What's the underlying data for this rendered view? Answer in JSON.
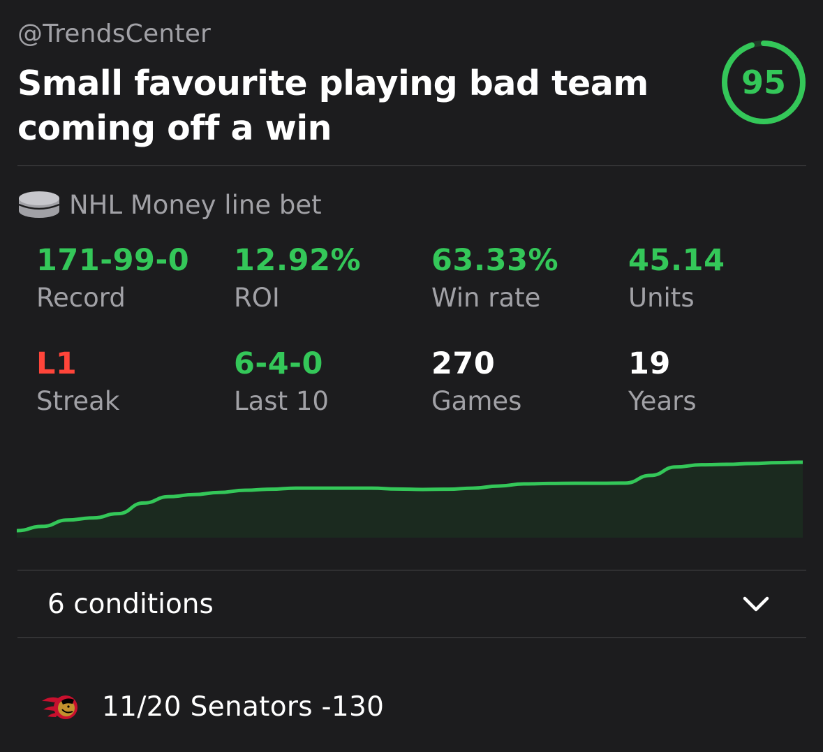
{
  "header": {
    "handle": "@TrendsCenter",
    "title": "Small favourite playing bad team coming off a win",
    "score": "95",
    "score_fraction": 0.95
  },
  "bet": {
    "icon": "hockey-puck-icon",
    "label": "NHL Money line bet"
  },
  "stats": {
    "record": {
      "value": "171-99-0",
      "label": "Record"
    },
    "roi": {
      "value": "12.92%",
      "label": "ROI"
    },
    "win_rate": {
      "value": "63.33%",
      "label": "Win rate"
    },
    "units": {
      "value": "45.14",
      "label": "Units"
    },
    "streak": {
      "value": "L1",
      "label": "Streak"
    },
    "last10": {
      "value": "6-4-0",
      "label": "Last 10"
    },
    "games": {
      "value": "270",
      "label": "Games"
    },
    "years": {
      "value": "19",
      "label": "Years"
    }
  },
  "chart_data": {
    "type": "area",
    "series": [
      {
        "values": [
          0,
          2,
          5,
          6,
          8,
          13,
          16,
          17,
          18,
          19,
          19.5,
          20,
          20,
          20,
          20,
          19.6,
          19.4,
          19.5,
          20,
          21,
          22,
          22.2,
          22.3,
          22.3,
          22.4,
          26,
          30,
          31,
          31.2,
          31.6,
          32,
          32.2
        ]
      }
    ],
    "grid": false,
    "colors": {
      "line": "#34c759",
      "fill": "#1b2a1f"
    }
  },
  "conditions": {
    "label": "6 conditions",
    "icon": "chevron-down-icon"
  },
  "game": {
    "team_icon": "ottawa-senators-logo-icon",
    "text": "11/20 Senators -130"
  },
  "colors": {
    "background": "#1c1c1e",
    "green": "#34c759",
    "red": "#ff453a",
    "muted": "#a1a1a6",
    "divider": "#48484a"
  }
}
